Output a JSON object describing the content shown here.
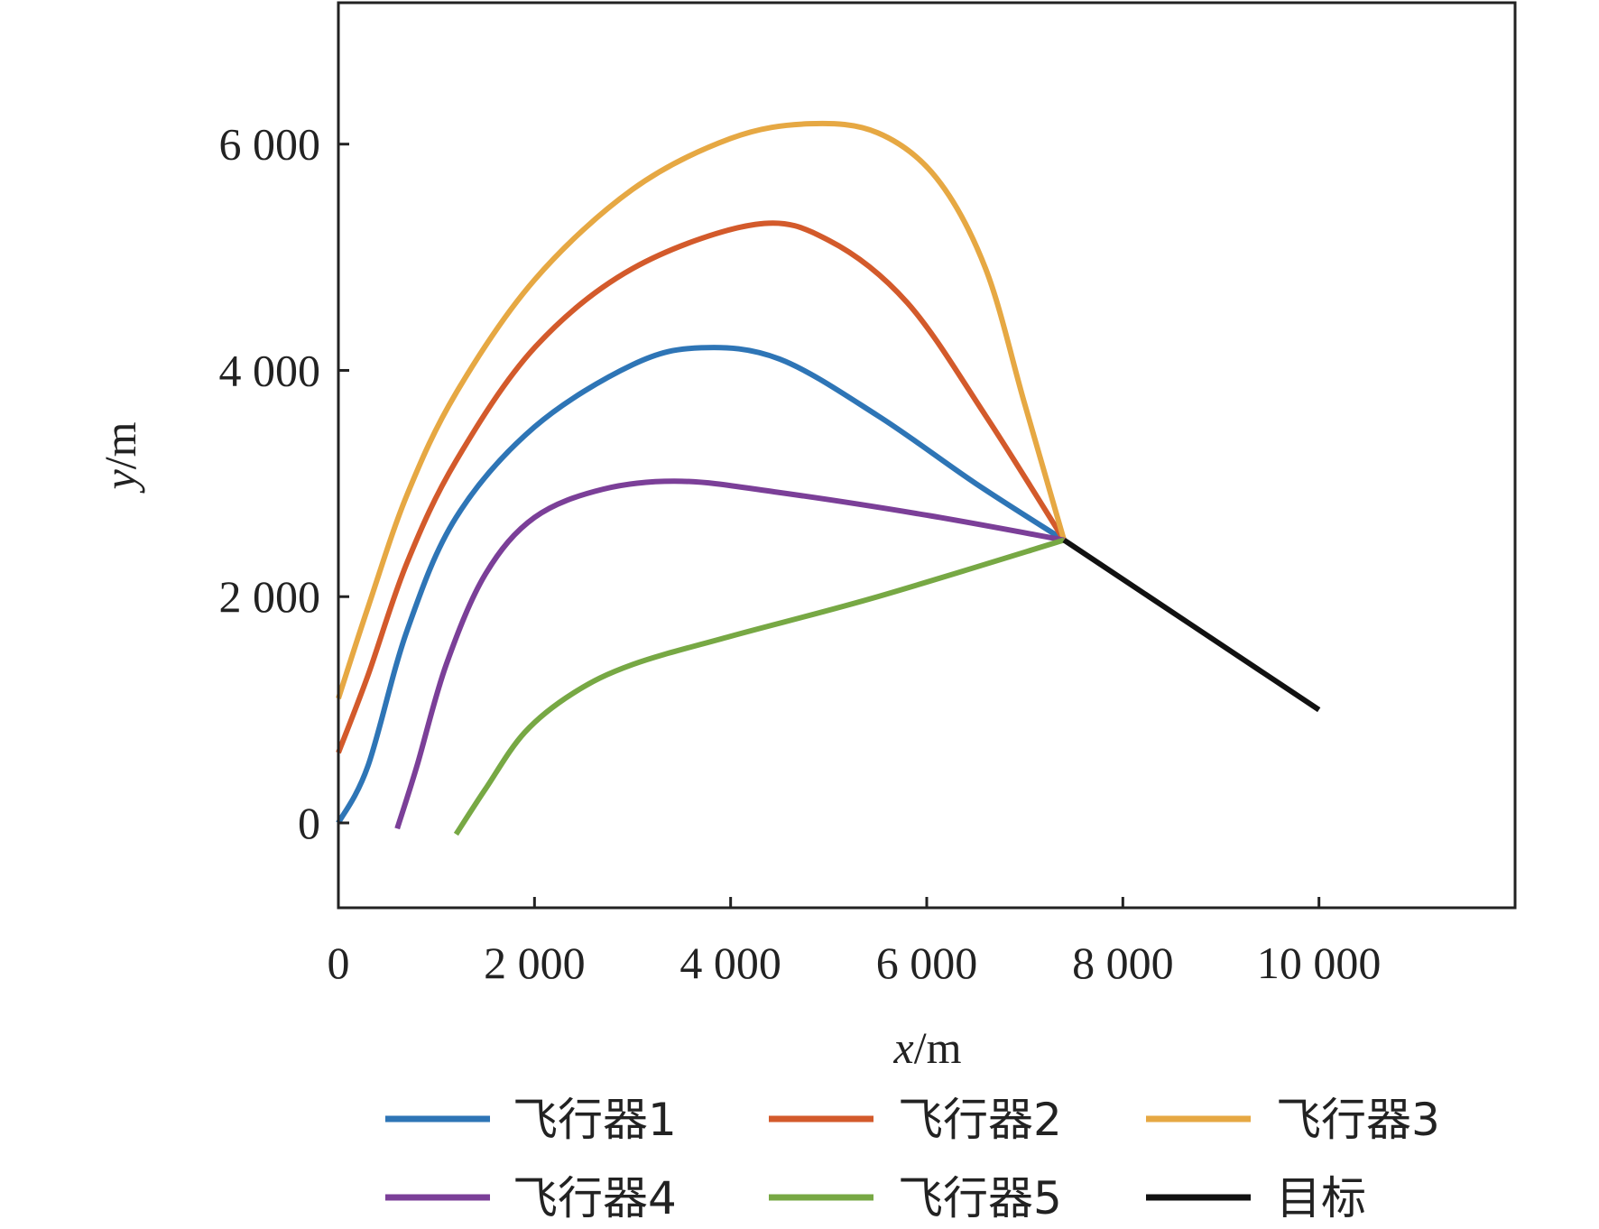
{
  "chart_data": {
    "type": "line",
    "title": "",
    "xlabel_var": "x",
    "xlabel_unit": "/m",
    "ylabel_var": "y",
    "ylabel_unit": "/m",
    "xlim": [
      0,
      12000
    ],
    "ylim": [
      -750,
      7250
    ],
    "xticks": [
      0,
      2000,
      4000,
      6000,
      8000,
      10000
    ],
    "xtick_labels": [
      "0",
      "2 000",
      "4 000",
      "6 000",
      "8 000",
      "10 000"
    ],
    "yticks": [
      0,
      2000,
      4000,
      6000
    ],
    "ytick_labels": [
      "0",
      "2 000",
      "4 000",
      "6 000"
    ],
    "grid": false,
    "legend_placement": "bottom",
    "series": [
      {
        "name": "飞行器1",
        "color": "#2e75b6",
        "points": [
          [
            0,
            0
          ],
          [
            300,
            500
          ],
          [
            700,
            1700
          ],
          [
            1200,
            2700
          ],
          [
            2000,
            3500
          ],
          [
            3000,
            4050
          ],
          [
            3700,
            4200
          ],
          [
            4500,
            4100
          ],
          [
            5500,
            3600
          ],
          [
            6500,
            3000
          ],
          [
            7400,
            2500
          ]
        ]
      },
      {
        "name": "飞行器2",
        "color": "#d35a2b",
        "points": [
          [
            0,
            620
          ],
          [
            300,
            1300
          ],
          [
            700,
            2300
          ],
          [
            1200,
            3200
          ],
          [
            2000,
            4200
          ],
          [
            3000,
            4900
          ],
          [
            4250,
            5290
          ],
          [
            5000,
            5150
          ],
          [
            5800,
            4600
          ],
          [
            6600,
            3600
          ],
          [
            7400,
            2500
          ]
        ]
      },
      {
        "name": "飞行器3",
        "color": "#e6a843",
        "points": [
          [
            0,
            1100
          ],
          [
            300,
            1900
          ],
          [
            700,
            2900
          ],
          [
            1200,
            3800
          ],
          [
            2000,
            4800
          ],
          [
            3000,
            5600
          ],
          [
            4000,
            6050
          ],
          [
            4800,
            6180
          ],
          [
            5500,
            6100
          ],
          [
            6100,
            5700
          ],
          [
            6600,
            4900
          ],
          [
            7000,
            3700
          ],
          [
            7400,
            2500
          ]
        ]
      },
      {
        "name": "飞行器4",
        "color": "#7b3f98",
        "points": [
          [
            600,
            -50
          ],
          [
            800,
            500
          ],
          [
            1100,
            1400
          ],
          [
            1500,
            2200
          ],
          [
            2000,
            2700
          ],
          [
            2700,
            2950
          ],
          [
            3500,
            3020
          ],
          [
            4500,
            2920
          ],
          [
            6000,
            2720
          ],
          [
            7400,
            2500
          ]
        ]
      },
      {
        "name": "飞行器5",
        "color": "#77a844",
        "points": [
          [
            1200,
            -100
          ],
          [
            1500,
            300
          ],
          [
            1900,
            800
          ],
          [
            2400,
            1150
          ],
          [
            3000,
            1400
          ],
          [
            4000,
            1650
          ],
          [
            5500,
            2000
          ],
          [
            7400,
            2500
          ]
        ]
      },
      {
        "name": "目标",
        "color": "#111111",
        "points": [
          [
            7400,
            2500
          ],
          [
            10000,
            1000
          ]
        ]
      }
    ]
  }
}
